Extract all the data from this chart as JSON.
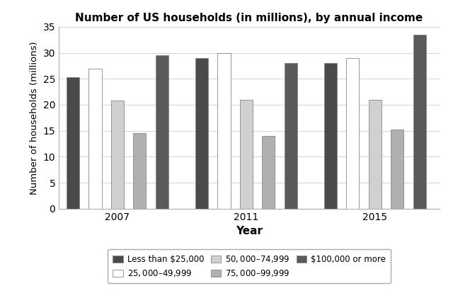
{
  "title": "Number of US households (in millions), by annual income",
  "xlabel": "Year",
  "ylabel": "Number of households (millions)",
  "years": [
    "2007",
    "2011",
    "2015"
  ],
  "categories": [
    "Less than $25,000",
    "$25,000–$49,999",
    "$50,000–$74,999",
    "$75,000–$99,999",
    "$100,000 or more"
  ],
  "values": {
    "2007": [
      25.3,
      27.0,
      20.8,
      14.6,
      29.5
    ],
    "2011": [
      29.0,
      30.0,
      21.0,
      14.0,
      28.0
    ],
    "2015": [
      28.0,
      29.0,
      21.0,
      15.2,
      33.5
    ]
  },
  "colors": [
    "#4a4a4a",
    "#ffffff",
    "#d0d0d0",
    "#b0b0b0",
    "#5a5a5a"
  ],
  "bar_edge_color": "#888888",
  "ylim": [
    0,
    35
  ],
  "yticks": [
    0,
    5,
    10,
    15,
    20,
    25,
    30,
    35
  ],
  "figsize": [
    6.4,
    4.21
  ],
  "dpi": 100
}
